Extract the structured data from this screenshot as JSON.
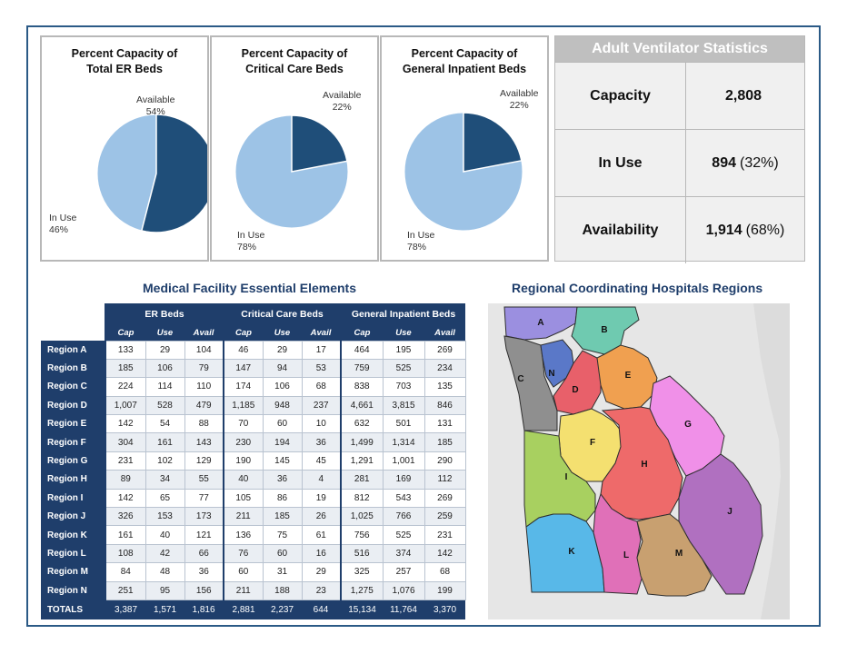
{
  "pies": [
    {
      "title_line1": "Percent Capacity of",
      "title_line2": "Total ER Beds",
      "available_label": "Available",
      "available_pct": "54%",
      "inuse_label": "In Use",
      "inuse_pct": "46%"
    },
    {
      "title_line1": "Percent Capacity of",
      "title_line2": "Critical Care Beds",
      "available_label": "Available",
      "available_pct": "22%",
      "inuse_label": "In Use",
      "inuse_pct": "78%"
    },
    {
      "title_line1": "Percent Capacity of",
      "title_line2": "General Inpatient Beds",
      "available_label": "Available",
      "available_pct": "22%",
      "inuse_label": "In Use",
      "inuse_pct": "78%"
    }
  ],
  "ventilator": {
    "title": "Adult Ventilator Statistics",
    "rows": [
      {
        "label": "Capacity",
        "value": "2,808",
        "note": ""
      },
      {
        "label": "In Use",
        "value": "894",
        "note": "(32%)"
      },
      {
        "label": "Availability",
        "value": "1,914",
        "note": "(68%)"
      }
    ]
  },
  "table": {
    "title": "Medical Facility Essential Elements",
    "groups": [
      "ER Beds",
      "Critical Care Beds",
      "General Inpatient Beds"
    ],
    "subheaders": [
      "Cap",
      "Use",
      "Avail"
    ],
    "rows": [
      {
        "region": "Region A",
        "values": [
          "133",
          "29",
          "104",
          "46",
          "29",
          "17",
          "464",
          "195",
          "269"
        ]
      },
      {
        "region": "Region B",
        "values": [
          "185",
          "106",
          "79",
          "147",
          "94",
          "53",
          "759",
          "525",
          "234"
        ]
      },
      {
        "region": "Region C",
        "values": [
          "224",
          "114",
          "110",
          "174",
          "106",
          "68",
          "838",
          "703",
          "135"
        ]
      },
      {
        "region": "Region D",
        "values": [
          "1,007",
          "528",
          "479",
          "1,185",
          "948",
          "237",
          "4,661",
          "3,815",
          "846"
        ]
      },
      {
        "region": "Region E",
        "values": [
          "142",
          "54",
          "88",
          "70",
          "60",
          "10",
          "632",
          "501",
          "131"
        ]
      },
      {
        "region": "Region F",
        "values": [
          "304",
          "161",
          "143",
          "230",
          "194",
          "36",
          "1,499",
          "1,314",
          "185"
        ]
      },
      {
        "region": "Region G",
        "values": [
          "231",
          "102",
          "129",
          "190",
          "145",
          "45",
          "1,291",
          "1,001",
          "290"
        ]
      },
      {
        "region": "Region H",
        "values": [
          "89",
          "34",
          "55",
          "40",
          "36",
          "4",
          "281",
          "169",
          "112"
        ]
      },
      {
        "region": "Region I",
        "values": [
          "142",
          "65",
          "77",
          "105",
          "86",
          "19",
          "812",
          "543",
          "269"
        ]
      },
      {
        "region": "Region J",
        "values": [
          "326",
          "153",
          "173",
          "211",
          "185",
          "26",
          "1,025",
          "766",
          "259"
        ]
      },
      {
        "region": "Region K",
        "values": [
          "161",
          "40",
          "121",
          "136",
          "75",
          "61",
          "756",
          "525",
          "231"
        ]
      },
      {
        "region": "Region L",
        "values": [
          "108",
          "42",
          "66",
          "76",
          "60",
          "16",
          "516",
          "374",
          "142"
        ]
      },
      {
        "region": "Region M",
        "values": [
          "84",
          "48",
          "36",
          "60",
          "31",
          "29",
          "325",
          "257",
          "68"
        ]
      },
      {
        "region": "Region N",
        "values": [
          "251",
          "95",
          "156",
          "211",
          "188",
          "23",
          "1,275",
          "1,076",
          "199"
        ]
      }
    ],
    "totals": {
      "label": "TOTALS",
      "values": [
        "3,387",
        "1,571",
        "1,816",
        "2,881",
        "2,237",
        "644",
        "15,134",
        "11,764",
        "3,370"
      ]
    }
  },
  "map": {
    "title": "Regional Coordinating Hospitals Regions",
    "regions": [
      {
        "letter": "A",
        "color": "#9b8fe0"
      },
      {
        "letter": "B",
        "color": "#6fcab0"
      },
      {
        "letter": "C",
        "color": "#8f8f8f"
      },
      {
        "letter": "N",
        "color": "#5a78c8"
      },
      {
        "letter": "D",
        "color": "#e8606a"
      },
      {
        "letter": "E",
        "color": "#f0a050"
      },
      {
        "letter": "G",
        "color": "#f090e8"
      },
      {
        "letter": "F",
        "color": "#f4e070"
      },
      {
        "letter": "H",
        "color": "#ee6a6a"
      },
      {
        "letter": "I",
        "color": "#a8d060"
      },
      {
        "letter": "J",
        "color": "#b070c0"
      },
      {
        "letter": "K",
        "color": "#58b8e8"
      },
      {
        "letter": "L",
        "color": "#e070b8"
      },
      {
        "letter": "M",
        "color": "#c8a070"
      }
    ]
  },
  "colors": {
    "navy": "#1f3e6b",
    "pie_dark": "#1f4e79",
    "pie_light": "#9dc3e6",
    "gray_header": "#bfbfbf"
  },
  "chart_data": [
    {
      "type": "pie",
      "title": "Percent Capacity of Total ER Beds",
      "labels": [
        "Available",
        "In Use"
      ],
      "values": [
        54,
        46
      ]
    },
    {
      "type": "pie",
      "title": "Percent Capacity of Critical Care Beds",
      "labels": [
        "Available",
        "In Use"
      ],
      "values": [
        22,
        78
      ]
    },
    {
      "type": "pie",
      "title": "Percent Capacity of General Inpatient Beds",
      "labels": [
        "Available",
        "In Use"
      ],
      "values": [
        22,
        78
      ]
    }
  ]
}
